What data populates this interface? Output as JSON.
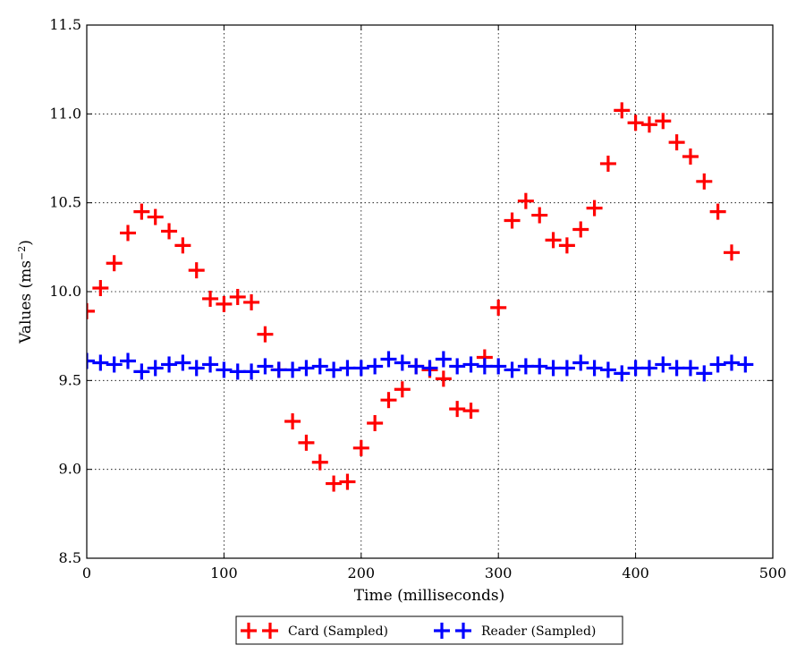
{
  "chart_data": {
    "type": "scatter",
    "xlabel": "Time (milliseconds)",
    "ylabel": "Values (ms",
    "ylabel_exponent": "−2",
    "ylabel_close": ")",
    "xlim": [
      0,
      500
    ],
    "ylim": [
      8.5,
      11.5
    ],
    "xticks": [
      "0",
      "100",
      "200",
      "300",
      "400",
      "500"
    ],
    "yticks": [
      "8.5",
      "9.0",
      "9.5",
      "10.0",
      "10.5",
      "11.0",
      "11.5"
    ],
    "grid": true,
    "legend_position": "bottom-center",
    "marker": "plus",
    "series": [
      {
        "name": "Card (Sampled)",
        "color": "#ff0000",
        "x": [
          0,
          10,
          20,
          30,
          40,
          50,
          60,
          70,
          80,
          90,
          100,
          110,
          120,
          130,
          140,
          150,
          160,
          170,
          180,
          190,
          200,
          210,
          220,
          230,
          240,
          250,
          260,
          270,
          280,
          290,
          300,
          310,
          320,
          330,
          340,
          350,
          360,
          370,
          380,
          390,
          400,
          410,
          420,
          430,
          440,
          450,
          460,
          470
        ],
        "y": [
          9.89,
          10.02,
          10.16,
          10.33,
          10.45,
          10.42,
          10.34,
          10.26,
          10.12,
          9.96,
          9.93,
          9.97,
          9.94,
          9.76,
          9.56,
          9.27,
          9.15,
          9.04,
          8.92,
          8.93,
          9.12,
          9.26,
          9.39,
          9.45,
          9.58,
          9.56,
          9.51,
          9.34,
          9.33,
          9.63,
          9.91,
          10.4,
          10.51,
          10.43,
          10.29,
          10.26,
          10.35,
          10.47,
          10.72,
          11.02,
          10.95,
          10.94,
          10.96,
          10.84,
          10.76,
          10.62,
          10.45,
          10.22
        ]
      },
      {
        "name": "Reader (Sampled)",
        "color": "#0000ff",
        "x": [
          0,
          10,
          20,
          30,
          40,
          50,
          60,
          70,
          80,
          90,
          100,
          110,
          120,
          130,
          140,
          150,
          160,
          170,
          180,
          190,
          200,
          210,
          220,
          230,
          240,
          250,
          260,
          270,
          280,
          290,
          300,
          310,
          320,
          330,
          340,
          350,
          360,
          370,
          380,
          390,
          400,
          410,
          420,
          430,
          440,
          450,
          460,
          470,
          480
        ],
        "y": [
          9.61,
          9.6,
          9.59,
          9.61,
          9.55,
          9.57,
          9.59,
          9.6,
          9.57,
          9.59,
          9.56,
          9.55,
          9.55,
          9.58,
          9.56,
          9.56,
          9.57,
          9.58,
          9.56,
          9.57,
          9.57,
          9.58,
          9.62,
          9.6,
          9.58,
          9.57,
          9.62,
          9.58,
          9.59,
          9.58,
          9.58,
          9.56,
          9.58,
          9.58,
          9.57,
          9.57,
          9.6,
          9.57,
          9.56,
          9.54,
          9.57,
          9.57,
          9.59,
          9.57,
          9.57,
          9.54,
          9.59,
          9.6,
          9.59
        ]
      }
    ]
  }
}
